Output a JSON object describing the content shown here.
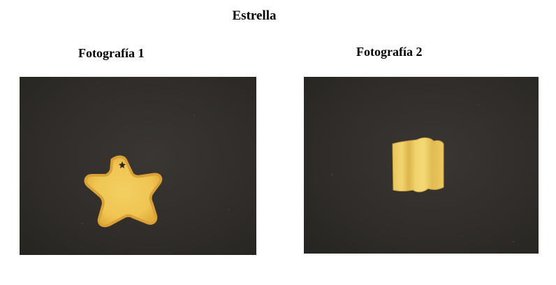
{
  "document": {
    "title": "Estrella",
    "figures": [
      {
        "caption": "Fotografía 1",
        "subject": "star-shaped-pasta-top-view"
      },
      {
        "caption": "Fotografía 2",
        "subject": "star-shaped-pasta-side-view"
      }
    ]
  },
  "colors": {
    "background": "#2f2c29",
    "pasta_fill": "#f1c95a",
    "pasta_edge": "#e0ad3c",
    "pasta_side": "#eccd66"
  }
}
